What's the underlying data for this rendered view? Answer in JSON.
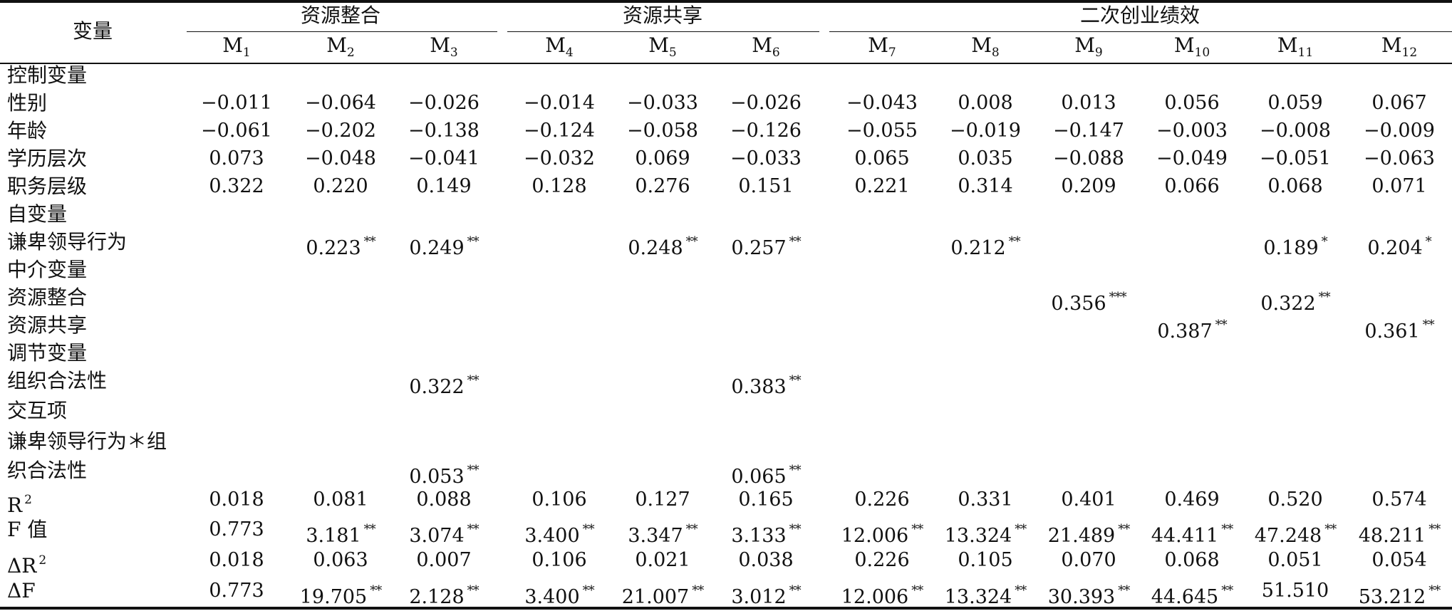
{
  "header": {
    "variable_label": "变量",
    "groups": [
      "资源整合",
      "资源共享",
      "二次创业绩效"
    ],
    "models": [
      "M1",
      "M2",
      "M3",
      "M4",
      "M5",
      "M6",
      "M7",
      "M8",
      "M9",
      "M10",
      "M11",
      "M12"
    ]
  },
  "rows": [
    {
      "label": "控制变量",
      "type": "section",
      "values": []
    },
    {
      "label": "性别",
      "type": "data",
      "values": [
        [
          "−0.011",
          ""
        ],
        [
          "−0.064",
          ""
        ],
        [
          "−0.026",
          ""
        ],
        [
          "−0.014",
          ""
        ],
        [
          "−0.033",
          ""
        ],
        [
          "−0.026",
          ""
        ],
        [
          "−0.043",
          ""
        ],
        [
          "0.008",
          ""
        ],
        [
          "0.013",
          ""
        ],
        [
          "0.056",
          ""
        ],
        [
          "0.059",
          ""
        ],
        [
          "0.067",
          ""
        ]
      ]
    },
    {
      "label": "年龄",
      "type": "data",
      "values": [
        [
          "−0.061",
          ""
        ],
        [
          "−0.202",
          ""
        ],
        [
          "−0.138",
          ""
        ],
        [
          "−0.124",
          ""
        ],
        [
          "−0.058",
          ""
        ],
        [
          "−0.126",
          ""
        ],
        [
          "−0.055",
          ""
        ],
        [
          "−0.019",
          ""
        ],
        [
          "−0.147",
          ""
        ],
        [
          "−0.003",
          ""
        ],
        [
          "−0.008",
          ""
        ],
        [
          "−0.009",
          ""
        ]
      ]
    },
    {
      "label": "学历层次",
      "type": "data",
      "values": [
        [
          "0.073",
          ""
        ],
        [
          "−0.048",
          ""
        ],
        [
          "−0.041",
          ""
        ],
        [
          "−0.032",
          ""
        ],
        [
          "0.069",
          ""
        ],
        [
          "−0.033",
          ""
        ],
        [
          "0.065",
          ""
        ],
        [
          "0.035",
          ""
        ],
        [
          "−0.088",
          ""
        ],
        [
          "−0.049",
          ""
        ],
        [
          "−0.051",
          ""
        ],
        [
          "−0.063",
          ""
        ]
      ]
    },
    {
      "label": "职务层级",
      "type": "data",
      "values": [
        [
          "0.322",
          ""
        ],
        [
          "0.220",
          ""
        ],
        [
          "0.149",
          ""
        ],
        [
          "0.128",
          ""
        ],
        [
          "0.276",
          ""
        ],
        [
          "0.151",
          ""
        ],
        [
          "0.221",
          ""
        ],
        [
          "0.314",
          ""
        ],
        [
          "0.209",
          ""
        ],
        [
          "0.066",
          ""
        ],
        [
          "0.068",
          ""
        ],
        [
          "0.071",
          ""
        ]
      ]
    },
    {
      "label": "自变量",
      "type": "section",
      "values": []
    },
    {
      "label": "谦卑领导行为",
      "type": "data",
      "values": [
        null,
        [
          "0.223",
          "**"
        ],
        [
          "0.249",
          "**"
        ],
        null,
        [
          "0.248",
          "**"
        ],
        [
          "0.257",
          "**"
        ],
        null,
        [
          "0.212",
          "**"
        ],
        null,
        null,
        [
          "0.189",
          "*"
        ],
        [
          "0.204",
          "*"
        ]
      ]
    },
    {
      "label": "中介变量",
      "type": "section",
      "values": []
    },
    {
      "label": "资源整合",
      "type": "data",
      "values": [
        null,
        null,
        null,
        null,
        null,
        null,
        null,
        null,
        [
          "0.356",
          "***"
        ],
        null,
        [
          "0.322",
          "**"
        ],
        null
      ]
    },
    {
      "label": "资源共享",
      "type": "data",
      "values": [
        null,
        null,
        null,
        null,
        null,
        null,
        null,
        null,
        null,
        [
          "0.387",
          "**"
        ],
        null,
        [
          "0.361",
          "**"
        ]
      ]
    },
    {
      "label": "调节变量",
      "type": "section",
      "values": []
    },
    {
      "label": "组织合法性",
      "type": "data",
      "values": [
        null,
        null,
        [
          "0.322",
          "**"
        ],
        null,
        null,
        [
          "0.383",
          "**"
        ],
        null,
        null,
        null,
        null,
        null,
        null
      ]
    },
    {
      "label": "交互项",
      "type": "section",
      "values": []
    },
    {
      "label": "谦卑领导行为＊组",
      "type": "section",
      "values": []
    },
    {
      "label": "织合法性",
      "type": "data",
      "values": [
        null,
        null,
        [
          "0.053",
          "**"
        ],
        null,
        null,
        [
          "0.065",
          "**"
        ],
        null,
        null,
        null,
        null,
        null,
        null
      ]
    },
    {
      "label": "R",
      "label_sup": "2",
      "type": "data",
      "values": [
        [
          "0.018",
          ""
        ],
        [
          "0.081",
          ""
        ],
        [
          "0.088",
          ""
        ],
        [
          "0.106",
          ""
        ],
        [
          "0.127",
          ""
        ],
        [
          "0.165",
          ""
        ],
        [
          "0.226",
          ""
        ],
        [
          "0.331",
          ""
        ],
        [
          "0.401",
          ""
        ],
        [
          "0.469",
          ""
        ],
        [
          "0.520",
          ""
        ],
        [
          "0.574",
          ""
        ]
      ]
    },
    {
      "label": "F 值",
      "type": "data",
      "values": [
        [
          "0.773",
          ""
        ],
        [
          "3.181",
          "**"
        ],
        [
          "3.074",
          "**"
        ],
        [
          "3.400",
          "**"
        ],
        [
          "3.347",
          "**"
        ],
        [
          "3.133",
          "**"
        ],
        [
          "12.006",
          "**"
        ],
        [
          "13.324",
          "**"
        ],
        [
          "21.489",
          "**"
        ],
        [
          "44.411",
          "**"
        ],
        [
          "47.248",
          "**"
        ],
        [
          "48.211",
          "**"
        ]
      ]
    },
    {
      "label": "ΔR",
      "label_sup": "2",
      "type": "data",
      "values": [
        [
          "0.018",
          ""
        ],
        [
          "0.063",
          ""
        ],
        [
          "0.007",
          ""
        ],
        [
          "0.106",
          ""
        ],
        [
          "0.021",
          ""
        ],
        [
          "0.038",
          ""
        ],
        [
          "0.226",
          ""
        ],
        [
          "0.105",
          ""
        ],
        [
          "0.070",
          ""
        ],
        [
          "0.068",
          ""
        ],
        [
          "0.051",
          ""
        ],
        [
          "0.054",
          ""
        ]
      ]
    },
    {
      "label": "ΔF",
      "type": "data",
      "values": [
        [
          "0.773",
          ""
        ],
        [
          "19.705",
          "**"
        ],
        [
          "2.128",
          "**"
        ],
        [
          "3.400",
          "**"
        ],
        [
          "21.007",
          "**"
        ],
        [
          "3.012",
          "**"
        ],
        [
          "12.006",
          "**"
        ],
        [
          "13.324",
          "**"
        ],
        [
          "30.393",
          "**"
        ],
        [
          "44.645",
          "**"
        ],
        [
          "51.510",
          ""
        ],
        [
          "53.212",
          "**"
        ]
      ]
    }
  ]
}
